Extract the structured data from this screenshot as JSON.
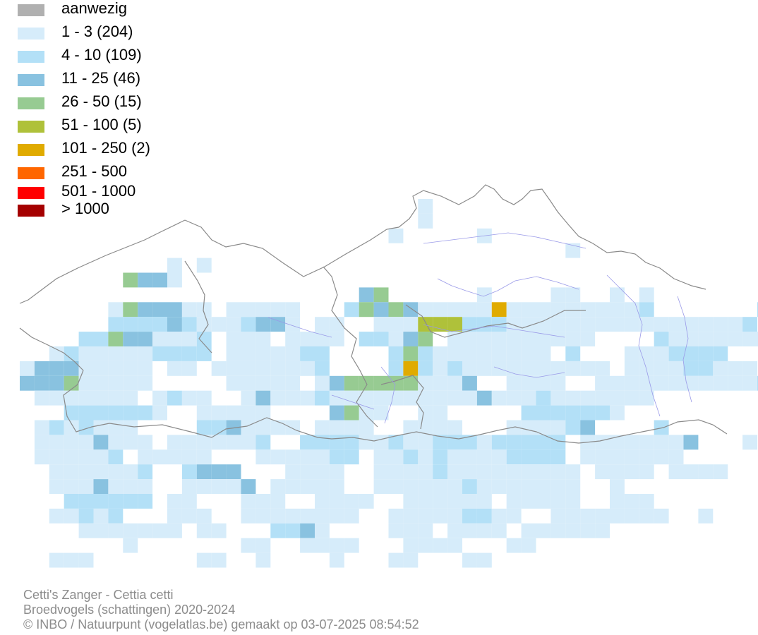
{
  "legend": {
    "items": [
      {
        "label": "aanwezig",
        "color": "#b0b0b0"
      },
      {
        "label": "1 - 3 (204)",
        "color": "#d6ecfa"
      },
      {
        "label": "4 - 10 (109)",
        "color": "#b3e0f7"
      },
      {
        "label": "11 - 25 (46)",
        "color": "#89c2e0"
      },
      {
        "label": "26 - 50 (15)",
        "color": "#97cb92"
      },
      {
        "label": "51 - 100 (5)",
        "color": "#afc13a"
      },
      {
        "label": "101 - 250 (2)",
        "color": "#e0ab00"
      },
      {
        "label": "251 - 500",
        "color": "#ff6600"
      },
      {
        "label": "501 - 1000",
        "color": "#ff0000"
      },
      {
        "label": "> 1000",
        "color": "#a50000"
      }
    ]
  },
  "map": {
    "border_color": "#8a8a8a",
    "river_color": "#9a9ae8"
  },
  "credits": {
    "species": "Cetti's Zanger - Cettia cetti",
    "dataset": "Broedvogels (schattingen) 2020-2024",
    "copyright": "© INBO / Natuurpunt (vogelatlas.be) gemaakt op 03-07-2025 08:54:52"
  }
}
